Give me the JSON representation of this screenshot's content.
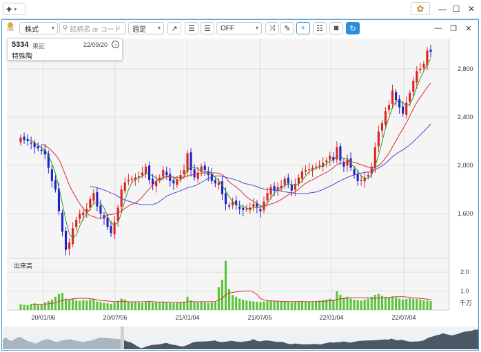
{
  "titlebar": {
    "add_label": "+",
    "window_controls": [
      "minimize-icon",
      "maximize-icon",
      "close-icon"
    ]
  },
  "toolbar": {
    "market_select": "株式",
    "search_placeholder": "銘柄名 or コード",
    "period_select": "週足",
    "indicator_select": "OFF",
    "hot_label": "Hot"
  },
  "info": {
    "code": "5334",
    "exchange": "東証",
    "date": "22/09/20",
    "name": "特殊陶"
  },
  "volume": {
    "label": "出来高",
    "unit": "千万",
    "axis_ticks": [
      "2.0",
      "1.0"
    ]
  },
  "chart_data": {
    "type": "candlestick",
    "price_axis": {
      "ticks": [
        2800,
        2400,
        2000,
        1600
      ],
      "ylim": [
        1230,
        3050
      ]
    },
    "volume_axis": {
      "ticks": [
        2.0,
        1.0
      ],
      "unit": "千万",
      "ylim": [
        0,
        2.7
      ]
    },
    "x_ticks": [
      "20/01/06",
      "20/07/06",
      "21/01/04",
      "21/07/05",
      "22/01/04",
      "22/07/04"
    ],
    "colors": {
      "up": "#e12020",
      "down": "#2222cc",
      "ma_short": "#2a9a2a",
      "ma_mid": "#d83030",
      "ma_long": "#4a4ad0",
      "volume": "#5cc43c"
    },
    "candle_close": [
      2230,
      2210,
      2200,
      2180,
      2150,
      2140,
      2120,
      2090,
      1980,
      1870,
      1800,
      1620,
      1450,
      1300,
      1360,
      1480,
      1550,
      1600,
      1610,
      1640,
      1720,
      1770,
      1660,
      1600,
      1560,
      1490,
      1440,
      1530,
      1650,
      1800,
      1860,
      1880,
      1890,
      1900,
      1910,
      1940,
      1990,
      1880,
      1840,
      1870,
      1900,
      1960,
      1920,
      1870,
      1850,
      1880,
      1920,
      1960,
      2100,
      1960,
      1900,
      1940,
      1990,
      1960,
      1920,
      1870,
      1850,
      1860,
      1760,
      1680,
      1660,
      1700,
      1670,
      1640,
      1630,
      1640,
      1650,
      1680,
      1650,
      1620,
      1700,
      1770,
      1820,
      1790,
      1820,
      1830,
      1890,
      1850,
      1790,
      1840,
      1900,
      1950,
      1960,
      1970,
      1980,
      1990,
      2000,
      2020,
      2040,
      2080,
      2040,
      2150,
      2040,
      1990,
      2050,
      1980,
      1920,
      1870,
      1880,
      1900,
      1920,
      1990,
      2150,
      2280,
      2350,
      2450,
      2500,
      2620,
      2540,
      2480,
      2430,
      2520,
      2600,
      2700,
      2780,
      2800,
      2840,
      2950,
      2940
    ],
    "volume_values": [
      0.3,
      0.28,
      0.25,
      0.32,
      0.35,
      0.28,
      0.3,
      0.4,
      0.48,
      0.55,
      0.7,
      0.85,
      0.9,
      0.6,
      0.55,
      0.58,
      0.5,
      0.48,
      0.52,
      0.5,
      0.55,
      0.6,
      0.45,
      0.42,
      0.38,
      0.35,
      0.33,
      0.4,
      0.48,
      0.6,
      0.55,
      0.45,
      0.4,
      0.42,
      0.4,
      0.38,
      0.42,
      0.45,
      0.4,
      0.4,
      0.42,
      0.45,
      0.4,
      0.38,
      0.36,
      0.38,
      0.4,
      0.44,
      0.7,
      0.5,
      0.42,
      0.4,
      0.42,
      0.4,
      0.38,
      0.4,
      0.42,
      1.2,
      1.6,
      2.6,
      1.1,
      0.8,
      0.7,
      0.6,
      0.55,
      0.5,
      0.48,
      0.45,
      0.44,
      0.42,
      0.45,
      0.48,
      0.5,
      0.48,
      0.45,
      0.44,
      0.45,
      0.42,
      0.4,
      0.42,
      0.45,
      0.48,
      0.45,
      0.44,
      0.45,
      0.48,
      0.5,
      0.52,
      0.55,
      0.6,
      0.55,
      1.0,
      0.8,
      0.65,
      0.7,
      0.6,
      0.55,
      0.52,
      0.5,
      0.55,
      0.6,
      0.7,
      0.8,
      0.85,
      0.75,
      0.7,
      0.68,
      0.72,
      0.65,
      0.6,
      0.55,
      0.58,
      0.62,
      0.6,
      0.58,
      0.55,
      0.52,
      0.5,
      0.48
    ]
  }
}
